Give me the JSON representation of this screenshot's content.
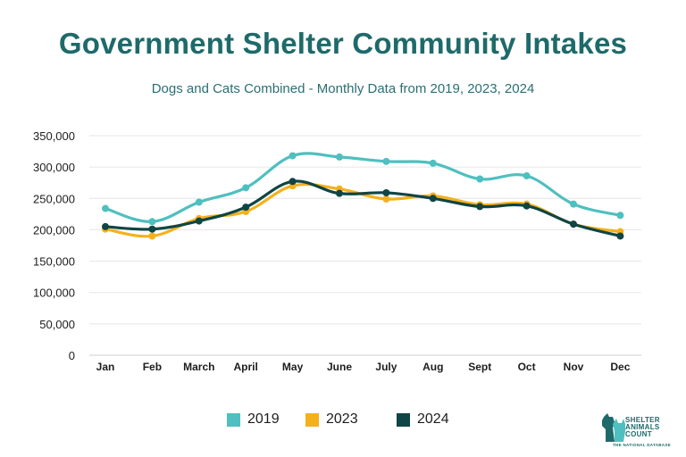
{
  "title": "Government Shelter Community Intakes",
  "subtitle": "Dogs and Cats Combined - Monthly Data from 2019, 2023, 2024",
  "chart_data": {
    "type": "line",
    "title": "Government Shelter Community Intakes",
    "subtitle": "Dogs and Cats Combined - Monthly Data from 2019, 2023, 2024",
    "xlabel": "",
    "ylabel": "",
    "ylim": [
      0,
      350000
    ],
    "yticks": [
      0,
      50000,
      100000,
      150000,
      200000,
      250000,
      300000,
      350000
    ],
    "ytick_labels": [
      "0",
      "50,000",
      "100,000",
      "150,000",
      "200,000",
      "250,000",
      "300,000",
      "350,000"
    ],
    "grid": true,
    "legend_position": "bottom",
    "categories": [
      "Jan",
      "Feb",
      "March",
      "April",
      "May",
      "June",
      "July",
      "Aug",
      "Sept",
      "Oct",
      "Nov",
      "Dec"
    ],
    "series": [
      {
        "name": "2019",
        "color": "#4fbfbf",
        "values": [
          234000,
          213000,
          244000,
          267000,
          318000,
          316000,
          309000,
          306000,
          281000,
          286000,
          241000,
          223000
        ]
      },
      {
        "name": "2023",
        "color": "#f5b11b",
        "values": [
          201000,
          190000,
          218000,
          229000,
          270000,
          265000,
          249000,
          254000,
          240000,
          241000,
          209000,
          197000
        ]
      },
      {
        "name": "2024",
        "color": "#0f4545",
        "values": [
          205000,
          201000,
          214000,
          236000,
          277000,
          258000,
          259000,
          250000,
          237000,
          238000,
          209000,
          190000
        ]
      }
    ]
  },
  "logo": {
    "line1": "SHELTER",
    "line2": "ANIMALS",
    "line3": "COUNT",
    "tagline": "THE NATIONAL DATABASE"
  }
}
